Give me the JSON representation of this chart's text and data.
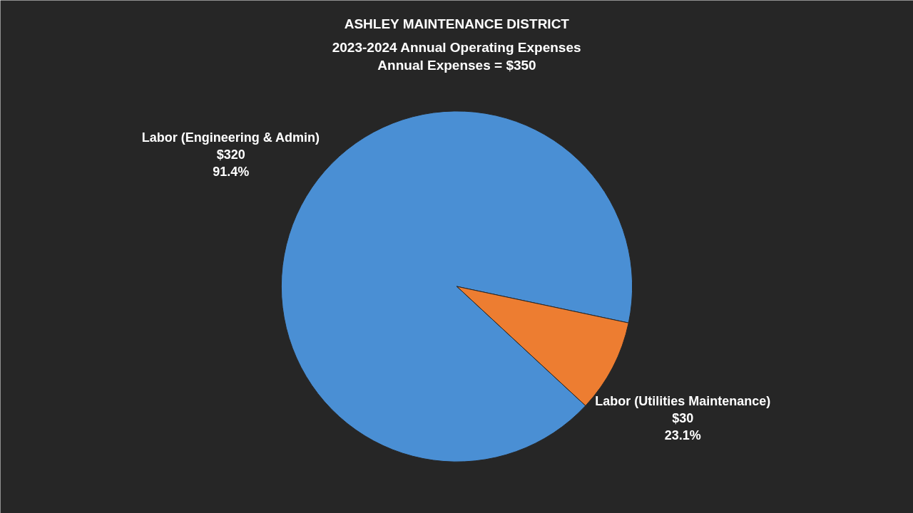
{
  "chart_data": {
    "type": "pie",
    "title": "ASHLEY MAINTENANCE DISTRICT",
    "subtitle": "2023-2024 Annual Operating Expenses\nAnnual Expenses = $350",
    "categories": [
      "Labor (Engineering & Admin)",
      "Labor (Utilities Maintenance)"
    ],
    "values": [
      320,
      30
    ],
    "colors": [
      "#4a8fd4",
      "#ed7d31"
    ],
    "value_labels": [
      "$320\n91.4%",
      "$30\n23.1%"
    ]
  }
}
